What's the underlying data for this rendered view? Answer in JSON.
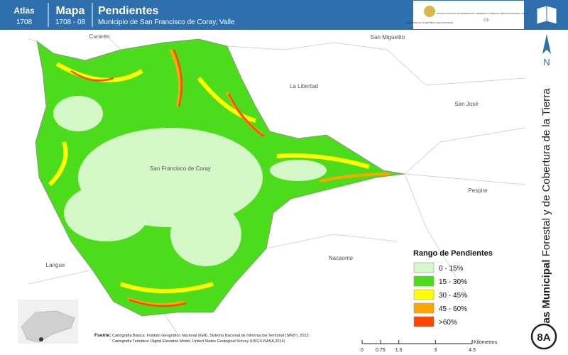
{
  "header": {
    "atlas_label": "Atlas",
    "atlas_code": "1708",
    "map_label": "Mapa",
    "map_code": "1708 - 08",
    "title": "Pendientes",
    "subtitle": "Municipio de San Francisco de Coray, Valle",
    "logo_left": "GOBIERNO DE LA REPÚBLICA DE HONDURAS",
    "logo_right": "INSTITUTO NACIONAL DE CONSERVACIÓN Y DESARROLLO FORESTAL, ÁREAS PROTEGIDAS Y VIDA SILVESTRE",
    "logo_right_abbr": "ICF"
  },
  "places": [
    "Curarén",
    "San Miguelito",
    "La Libertad",
    "San José",
    "San Francisco de Coray",
    "Pespire",
    "Nacaome",
    "Langue"
  ],
  "legend": {
    "title": "Rango de Pendientes",
    "items": [
      {
        "label": "0 - 15%",
        "color": "#d4f7c8"
      },
      {
        "label": "15 - 30%",
        "color": "#4ddc1c"
      },
      {
        "label": "30 - 45%",
        "color": "#ffff00"
      },
      {
        "label": "45 - 60%",
        "color": "#ffa500"
      },
      {
        "label": ">60%",
        "color": "#ff4500"
      }
    ]
  },
  "sidebar": {
    "title_bold": "Atlas Municipal",
    "title_rest": "Forestal y de Cobertura de la Tierra",
    "north": "N",
    "sheet": "8A"
  },
  "source": {
    "label": "Fuente:",
    "line1": "Cartografía Básica: Instituto Geográfico Nacional (IGN), Sistema Nacional de Información Territorial (SINIT), 2013",
    "line2": "Cartografía Temática: Digital Elevation Model, United States Geological Survey (USGS-NASA,2014)"
  },
  "scale_bar": {
    "ticks": [
      0,
      0.75,
      1.5,
      3,
      4.5
    ],
    "unit": "Kilómetros"
  }
}
